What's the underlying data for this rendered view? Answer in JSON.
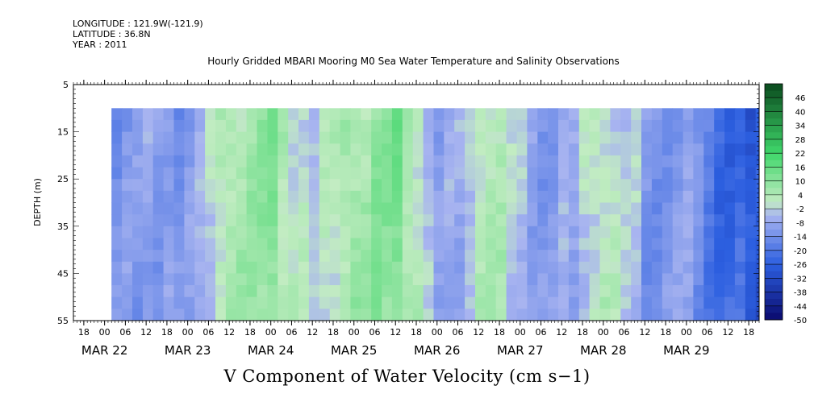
{
  "header": {
    "longitude": "LONGITUDE : 121.9W(-121.9)",
    "latitude": "LATITUDE : 36.8N",
    "year": "YEAR : 2011"
  },
  "chart_data": {
    "type": "heatmap",
    "title": "Hourly Gridded MBARI Mooring M0 Sea Water Temperature and Salinity Observations",
    "xlabel": "V Component of Water Velocity (cm s−1)",
    "ylabel": "DEPTH (m)",
    "y_ticks": [
      "5",
      "15",
      "25",
      "35",
      "45",
      "55"
    ],
    "ylim": [
      55,
      5
    ],
    "data_depth_range": [
      10,
      55
    ],
    "x_hour_ticks": [
      "18",
      "00",
      "06",
      "12",
      "18",
      "00",
      "06",
      "12",
      "18",
      "00",
      "06",
      "12",
      "18",
      "00",
      "06",
      "12",
      "18",
      "00",
      "06",
      "12",
      "18",
      "00",
      "06",
      "12",
      "18",
      "00",
      "06",
      "12",
      "18",
      "00",
      "06",
      "12",
      "18"
    ],
    "x_day_labels": [
      "MAR 22",
      "MAR 23",
      "MAR 24",
      "MAR 25",
      "MAR 26",
      "MAR 27",
      "MAR 28",
      "MAR 29"
    ],
    "xlim": [
      "2011-03-21T15:00",
      "2011-03-29T21:00"
    ],
    "data_start": "2011-03-22T02:00",
    "colorbar_labels": [
      "46",
      "40",
      "34",
      "28",
      "22",
      "16",
      "10",
      "4",
      "-2",
      "-8",
      "-14",
      "-20",
      "-26",
      "-32",
      "-38",
      "-44",
      "-50"
    ],
    "colorbar_range": [
      -50,
      52
    ],
    "colors": {
      "neg_darkest": "#0a0a6e",
      "neg_mid": "#2c5fe0",
      "neg_light": "#a8b4f0",
      "zero_light": "#c2ecc2",
      "pos_mid": "#3fd66a",
      "pos_darkest": "#0a4a1e"
    },
    "velocity_profile_by_day": {
      "days": [
        "03-22 12h",
        "03-23 00h",
        "03-23 12h",
        "03-24 00h",
        "03-24 12h",
        "03-25 00h",
        "03-25 12h",
        "03-26 00h",
        "03-26 12h",
        "03-27 00h",
        "03-27 12h",
        "03-28 00h",
        "03-28 12h",
        "03-29 00h",
        "03-29 12h"
      ],
      "approx_cm_s": [
        -14,
        -8,
        6,
        10,
        -4,
        8,
        12,
        -12,
        6,
        -8,
        -10,
        4,
        -12,
        -10,
        -26
      ]
    }
  }
}
